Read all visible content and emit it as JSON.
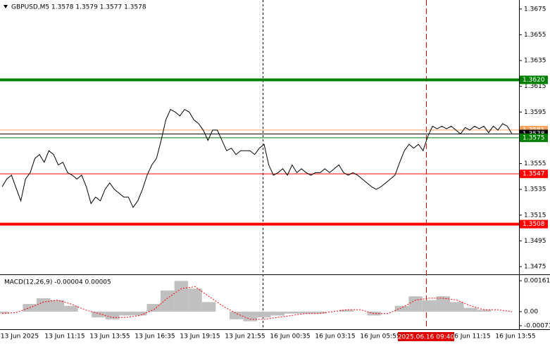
{
  "chart_data": [
    {
      "type": "line",
      "title": "GBPUSD,M5  1.3578 1.3579 1.3577 1.3578",
      "x_labels": [
        "13 Jun 2025",
        "13 Jun 11:15",
        "13 Jun 13:55",
        "13 Jun 16:35",
        "13 Jun 19:15",
        "13 Jun 21:55",
        "16 Jun 00:35",
        "16 Jun 03:15",
        "16 Jun 05:55",
        "16 Jun 11:15",
        "16 Jun 13:55"
      ],
      "cursor_label": "2025.06.16 09:40",
      "series": [
        {
          "name": "GBPUSD",
          "color": "#000000",
          "values": [
            1.3537,
            1.3543,
            1.3546,
            1.3536,
            1.3526,
            1.3543,
            1.3548,
            1.3559,
            1.3562,
            1.3556,
            1.3565,
            1.3562,
            1.3554,
            1.3556,
            1.3548,
            1.3546,
            1.3543,
            1.3546,
            1.3537,
            1.3524,
            1.3529,
            1.3526,
            1.3535,
            1.354,
            1.3535,
            1.3532,
            1.3529,
            1.3529,
            1.3521,
            1.3526,
            1.3535,
            1.3546,
            1.3554,
            1.3559,
            1.3573,
            1.3589,
            1.3597,
            1.3595,
            1.3592,
            1.3597,
            1.3595,
            1.3589,
            1.3586,
            1.3581,
            1.3573,
            1.3581,
            1.3581,
            1.3573,
            1.3565,
            1.3567,
            1.3562,
            1.3565,
            1.3565,
            1.3565,
            1.3562,
            1.3567,
            1.357,
            1.3554,
            1.3546,
            1.3548,
            1.3551,
            1.3546,
            1.3554,
            1.3548,
            1.3551,
            1.3548,
            1.3546,
            1.3548,
            1.3548,
            1.3551,
            1.3548,
            1.3551,
            1.3554,
            1.3548,
            1.3546,
            1.3548,
            1.3546,
            1.3543,
            1.354,
            1.3537,
            1.3535,
            1.3537,
            1.354,
            1.3543,
            1.3546,
            1.3556,
            1.3565,
            1.357,
            1.3567,
            1.357,
            1.3565,
            1.3576,
            1.3584,
            1.3582,
            1.3584,
            1.3582,
            1.3584,
            1.3581,
            1.3578,
            1.3583,
            1.3581,
            1.3584,
            1.3582,
            1.3584,
            1.3579,
            1.3584,
            1.3581,
            1.3586,
            1.3584,
            1.3578
          ]
        }
      ],
      "levels": [
        {
          "value": 1.362,
          "label": "1.3620",
          "color": "#008000",
          "thick": true
        },
        {
          "value": 1.3581,
          "label": "1.3581",
          "color": "#f4a460",
          "thick": false
        },
        {
          "value": 1.3578,
          "label": "1.3578",
          "color": "#000000",
          "thick": false
        },
        {
          "value": 1.3575,
          "label": "1.3575",
          "color": "#008000",
          "thick": false
        },
        {
          "value": 1.3547,
          "label": "1.3547",
          "color": "#ff0000",
          "thick": false
        },
        {
          "value": 1.3508,
          "label": "1.3508",
          "color": "#ff0000",
          "thick": true
        }
      ],
      "ylim": [
        1.3469,
        1.3682
      ],
      "yticks": [
        1.3675,
        1.3655,
        1.3635,
        1.3615,
        1.3595,
        1.3555,
        1.3535,
        1.3515,
        1.3495,
        1.3475
      ]
    },
    {
      "type": "bar",
      "title": "MACD(12,26,9) -0.00004 0.00005",
      "series": [
        {
          "name": "MACD",
          "color": "#c0c0c0",
          "values": [
            -0.0001,
            0.0,
            0.0004,
            0.0007,
            0.0006,
            0.0003,
            0.0,
            -0.0003,
            -0.0004,
            -0.0002,
            -0.0002,
            0.0004,
            0.0011,
            0.0016,
            0.0012,
            0.0005,
            0.0,
            -0.0004,
            -0.0005,
            -0.0003,
            -0.0002,
            -0.0001,
            -0.0001,
            -0.0001,
            0.0,
            0.0001,
            0.0,
            -0.0002,
            0.0,
            0.0003,
            0.0008,
            0.0006,
            0.0008,
            0.0005,
            0.0002,
            0.0001,
            0.0,
            0.0
          ]
        },
        {
          "name": "Signal",
          "color": "#ff0000",
          "values": [
            -0.0001,
            -5e-05,
            0.0002,
            0.0005,
            0.0006,
            0.0004,
            0.0001,
            -0.0001,
            -0.0003,
            -0.0003,
            -0.0002,
            0.0001,
            0.0007,
            0.0012,
            0.0013,
            0.0008,
            0.0003,
            -0.0001,
            -0.0004,
            -0.0004,
            -0.0003,
            -0.0002,
            -0.0001,
            -0.0001,
            0.0,
            0.0001,
            0.0001,
            -0.0001,
            -0.0001,
            0.0002,
            0.0006,
            0.0007,
            0.0007,
            0.0006,
            0.0003,
            0.0001,
            0.0001,
            0.0
          ]
        }
      ],
      "ylim": [
        -0.00088,
        0.00187
      ],
      "yticks": [
        0.00161,
        {
          "value": 0,
          "label": "0.00"
        },
        -0.00073
      ]
    }
  ]
}
